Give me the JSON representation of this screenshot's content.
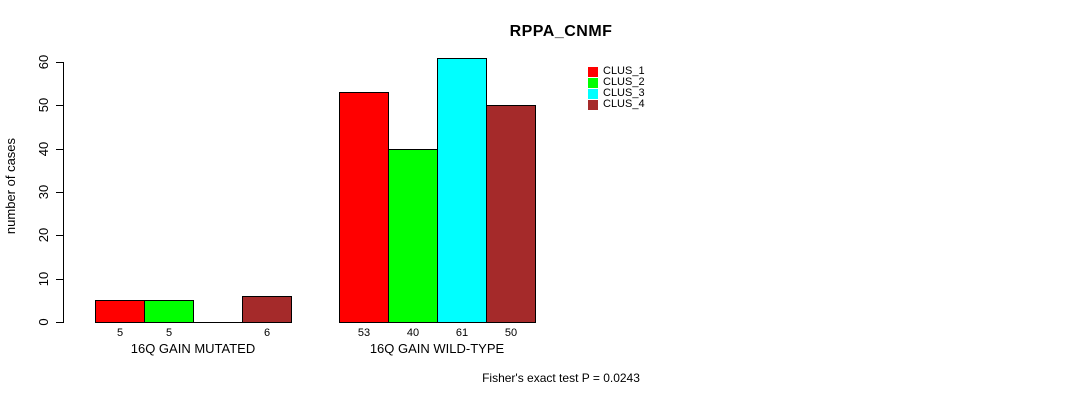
{
  "chart_data": {
    "type": "bar",
    "title": "RPPA_CNMF",
    "ylabel": "number of cases",
    "ylim": [
      0,
      60
    ],
    "yticks": [
      0,
      10,
      20,
      30,
      40,
      50,
      60
    ],
    "grid": false,
    "legend_position": "top-right",
    "categories": [
      "16Q GAIN MUTATED",
      "16Q GAIN WILD-TYPE"
    ],
    "series": [
      {
        "name": "CLUS_1",
        "color": "#ff0000",
        "values": [
          5,
          53
        ]
      },
      {
        "name": "CLUS_2",
        "color": "#00ff00",
        "values": [
          5,
          40
        ]
      },
      {
        "name": "CLUS_3",
        "color": "#00ffff",
        "values": [
          0,
          61
        ]
      },
      {
        "name": "CLUS_4",
        "color": "#a52a2a",
        "values": [
          6,
          50
        ]
      }
    ],
    "bar_value_labels": [
      [
        "5",
        "5",
        "",
        "6"
      ],
      [
        "53",
        "40",
        "61",
        "50"
      ]
    ],
    "annotation": "Fisher's exact test P = 0.0243"
  },
  "colors": {
    "axis": "#000000",
    "bar_border": "#000000",
    "background": "#ffffff"
  }
}
